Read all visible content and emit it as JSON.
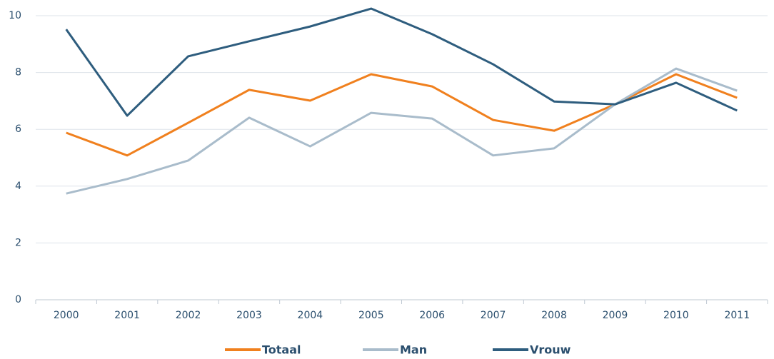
{
  "chart_data": {
    "type": "line",
    "categories": [
      "2000",
      "2001",
      "2002",
      "2003",
      "2004",
      "2005",
      "2006",
      "2007",
      "2008",
      "2009",
      "2010",
      "2011"
    ],
    "series": [
      {
        "name": "Totaal",
        "color": "#f0801e",
        "values": [
          5.88,
          5.08,
          6.23,
          7.39,
          7.01,
          7.94,
          7.51,
          6.33,
          5.95,
          6.88,
          7.94,
          7.11
        ]
      },
      {
        "name": "Man",
        "color": "#a9bccb",
        "values": [
          3.74,
          4.25,
          4.9,
          6.41,
          5.4,
          6.58,
          6.38,
          5.08,
          5.33,
          6.88,
          8.14,
          7.36
        ]
      },
      {
        "name": "Vrouw",
        "color": "#2e5d7e",
        "values": [
          9.52,
          6.48,
          8.57,
          9.1,
          9.62,
          10.25,
          9.35,
          8.29,
          6.98,
          6.88,
          7.64,
          6.66
        ]
      }
    ],
    "ylim": [
      0,
      10
    ],
    "yticks": [
      0,
      2,
      4,
      6,
      8,
      10
    ],
    "grid": true,
    "legend": "bottom"
  }
}
